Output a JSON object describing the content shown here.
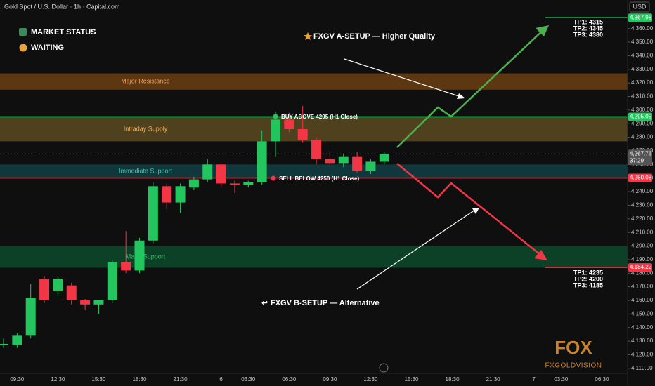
{
  "chart_data": {
    "type": "candlestick",
    "title": "Gold Spot / U.S. Dollar · 1h · Capital.com",
    "currency": "USD",
    "status_title": "MARKET STATUS",
    "status_value": "WAITING",
    "categories": [
      null,
      "09:30",
      null,
      null,
      "12:30",
      null,
      null,
      "15:30",
      null,
      null,
      "18:30",
      null,
      null,
      "21:30",
      null,
      null,
      "6",
      null,
      "03:30",
      null,
      null,
      "06:30",
      null,
      null,
      "09:30",
      null,
      null,
      "12:30",
      null,
      null,
      "15:30",
      null,
      null,
      "18:30",
      null,
      null,
      "21:30",
      null,
      null,
      "7",
      null,
      "03:30",
      null,
      null,
      "06:30",
      null
    ],
    "open": [
      4127,
      4127,
      4134,
      4176,
      4167,
      4171,
      4160,
      4157,
      4160,
      4188,
      4182,
      4204,
      4244,
      4232,
      4243,
      4249,
      4260,
      4246,
      4245,
      4247,
      4277,
      4293,
      4286,
      4278,
      4264,
      4261,
      4266,
      4255,
      4262,
      null,
      null,
      null,
      null,
      null,
      null,
      null,
      null,
      null,
      null,
      null,
      null,
      null,
      null,
      null,
      null,
      null
    ],
    "high": [
      4132,
      4136,
      4172,
      4178,
      4178,
      4173,
      4161,
      4160,
      4190,
      4211,
      4206,
      4247,
      4246,
      4246,
      4251,
      4264,
      4261,
      4248,
      4248,
      4285,
      4299,
      4298,
      4303,
      4280,
      4270,
      4268,
      4269,
      4264,
      4269,
      null,
      null,
      null,
      null,
      null,
      null,
      null,
      null,
      null,
      null,
      null,
      null,
      null,
      null,
      null,
      null,
      null
    ],
    "low": [
      4125,
      4125,
      4132,
      4158,
      4163,
      4157,
      4153,
      4150,
      4158,
      4180,
      4180,
      4202,
      4227,
      4224,
      4241,
      4247,
      4244,
      4239,
      4243,
      4245,
      4266,
      4284,
      4276,
      4260,
      4258,
      4258,
      4254,
      4253,
      4260,
      null,
      null,
      null,
      null,
      null,
      null,
      null,
      null,
      null,
      null,
      null,
      null,
      null,
      null,
      null,
      null,
      null
    ],
    "close": [
      4128,
      4134,
      4162,
      4160,
      4176,
      4160,
      4157,
      4160,
      4188,
      4182,
      4204,
      4244,
      4232,
      4244,
      4249,
      4260,
      4246,
      4245,
      4247,
      4277,
      4293,
      4286,
      4278,
      4264,
      4261,
      4266,
      4255,
      4262,
      4267.76,
      null,
      null,
      null,
      null,
      null,
      null,
      null,
      null,
      null,
      null,
      null,
      null,
      null,
      null,
      null,
      null,
      null
    ],
    "up_color": "#22c55e",
    "down_color": "#f23645",
    "ylim": [
      4097,
      4381
    ],
    "yticks": [
      {
        "value": 4110,
        "label": "4,110.00"
      },
      {
        "value": 4120,
        "label": "4,120.00"
      },
      {
        "value": 4130,
        "label": "4,130.00"
      },
      {
        "value": 4140,
        "label": "4,140.00"
      },
      {
        "value": 4150,
        "label": "4,150.00"
      },
      {
        "value": 4160,
        "label": "4,160.00"
      },
      {
        "value": 4170,
        "label": "4,170.00"
      },
      {
        "value": 4180,
        "label": "4,180.00"
      },
      {
        "value": 4190,
        "label": "4,190.00"
      },
      {
        "value": 4200,
        "label": "4,200.00"
      },
      {
        "value": 4210,
        "label": "4,210.00"
      },
      {
        "value": 4220,
        "label": "4,220.00"
      },
      {
        "value": 4230,
        "label": "4,230.00"
      },
      {
        "value": 4240,
        "label": "4,240.00"
      },
      {
        "value": 4250,
        "label": "4,250.00"
      },
      {
        "value": 4260,
        "label": "4,260.00"
      },
      {
        "value": 4270,
        "label": "4,270.00"
      },
      {
        "value": 4280,
        "label": "4,280.00"
      },
      {
        "value": 4290,
        "label": "4,290.00"
      },
      {
        "value": 4300,
        "label": "4,300.00"
      },
      {
        "value": 4310,
        "label": "4,310.00"
      },
      {
        "value": 4320,
        "label": "4,320.00"
      },
      {
        "value": 4330,
        "label": "4,330.00"
      },
      {
        "value": 4340,
        "label": "4,340.00"
      },
      {
        "value": 4350,
        "label": "4,350.00"
      },
      {
        "value": 4360,
        "label": "4,360.00"
      }
    ],
    "grid": false,
    "zones": [
      {
        "name": "Major Resistance",
        "from": 4315,
        "to": 4327,
        "color": "#6b3e12",
        "text_color": "#e9a15a"
      },
      {
        "name": "Intraday Supply",
        "from": 4277,
        "to": 4295,
        "color": "#5b4a20",
        "text_color": "#f0b060"
      },
      {
        "name": "Immediate Support",
        "from": 4250,
        "to": 4260,
        "color": "#0f3e44",
        "text_color": "#37c9a8"
      },
      {
        "name": "Major Support",
        "from": 4184,
        "to": 4200,
        "color": "#0c4a2c",
        "text_color": "#3fbf6a"
      }
    ],
    "levels": [
      {
        "value": 4295.05,
        "label": "4,295.05",
        "color": "#22c55e"
      },
      {
        "value": 4250.08,
        "label": "4,250.08",
        "color": "#f23645"
      },
      {
        "value": 4367.98,
        "label": "4,367.98",
        "color": "#22c55e"
      },
      {
        "value": 4184.22,
        "label": "4,184.22",
        "color": "#f23645"
      },
      {
        "value": 4267.76,
        "label": "4,267.76",
        "color": "#555555"
      }
    ],
    "countdown": "37:29",
    "annotations": {
      "buy": "BUY ABOVE 4295 (H1 Close)",
      "sell": "SELL BELOW 4250 (H1 Close)",
      "setup_a": "FXGV A-SETUP — Higher Quality",
      "setup_b": "FXGV B-SETUP — Alternative",
      "tp_up": [
        "TP1: 4315",
        "TP2: 4345",
        "TP3: 4380"
      ],
      "tp_down": [
        "TP1: 4235",
        "TP2: 4200",
        "TP3: 4185"
      ]
    },
    "logo": "FOX",
    "logo_sub": "FXGOLDVISION"
  }
}
